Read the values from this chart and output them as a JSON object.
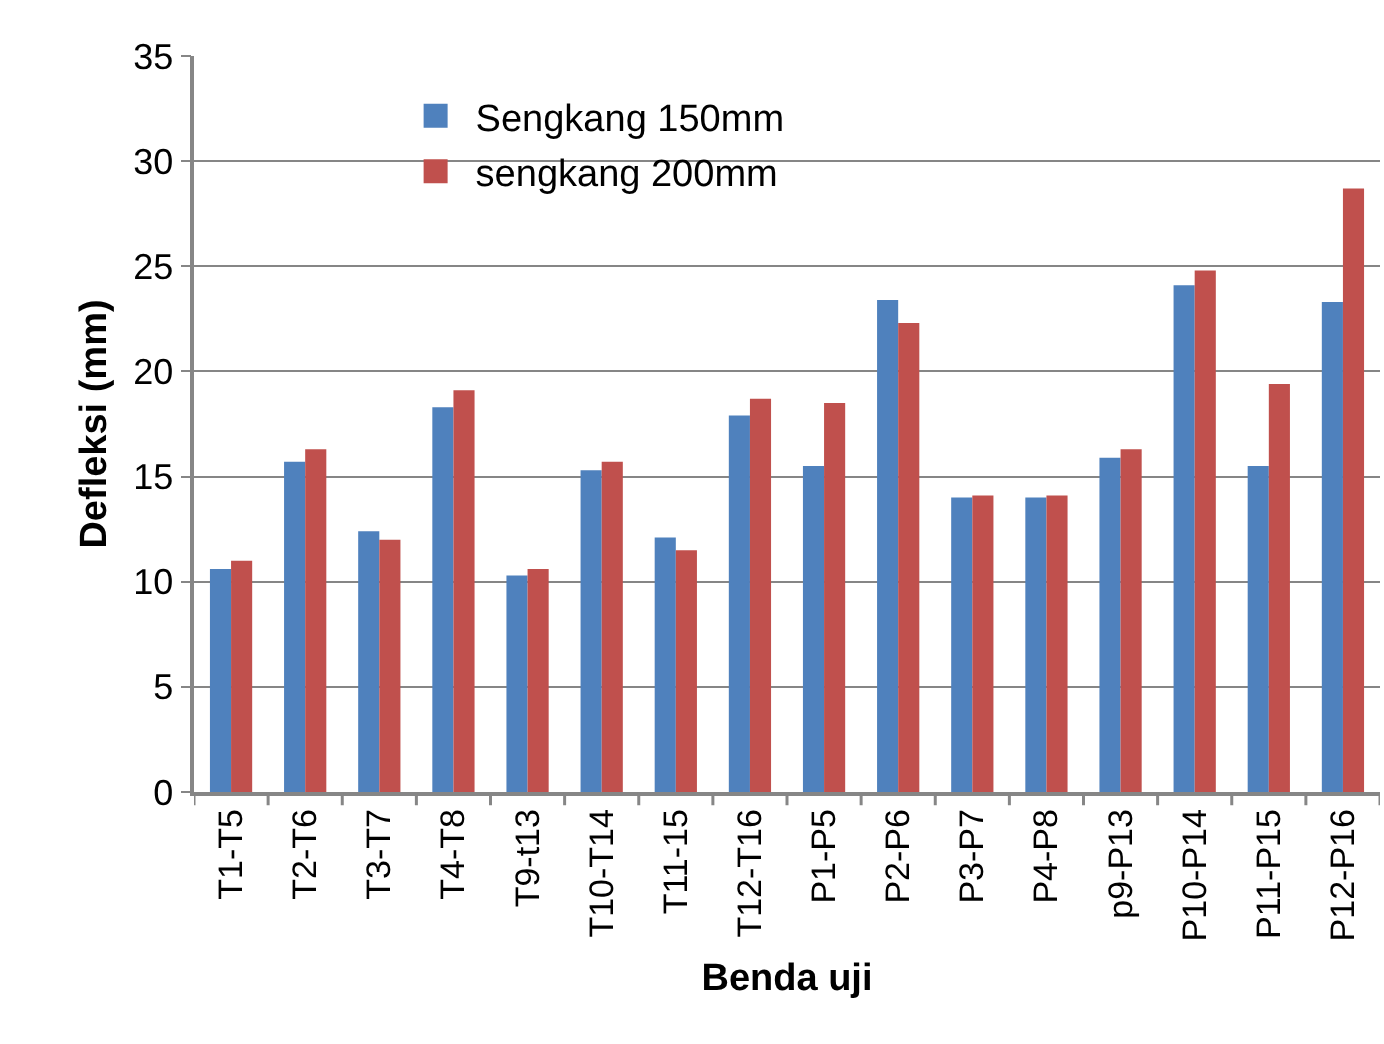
{
  "chart_data": {
    "type": "bar",
    "xlabel": "Benda uji",
    "ylabel": "Defleksi (mm)",
    "categories": [
      "T1-T5",
      "T2-T6",
      "T3-T7",
      "T4-T8",
      "T9-t13",
      "T10-T14",
      "T11-15",
      "T12-T16",
      "P1-P5",
      "P2-P6",
      "P3-P7",
      "P4-P8",
      "p9-P13",
      "P10-P14",
      "P11-P15",
      "P12-P16"
    ],
    "series": [
      {
        "name": "Sengkang 150mm",
        "color": "#4f81bd",
        "values": [
          10.6,
          15.7,
          12.4,
          18.3,
          10.3,
          15.3,
          12.1,
          17.9,
          15.5,
          23.4,
          14.0,
          14.0,
          15.9,
          24.1,
          15.5,
          23.3
        ]
      },
      {
        "name": "sengkang 200mm",
        "color": "#c0504d",
        "values": [
          11.0,
          16.3,
          12.0,
          19.1,
          10.6,
          15.7,
          11.5,
          18.7,
          18.5,
          22.3,
          14.1,
          14.1,
          16.3,
          24.8,
          19.4,
          28.7
        ]
      }
    ],
    "ylim": [
      0,
      35
    ],
    "yticks": [
      0,
      5,
      10,
      15,
      20,
      25,
      30,
      35
    ],
    "grid": "y",
    "legend": "top left"
  }
}
